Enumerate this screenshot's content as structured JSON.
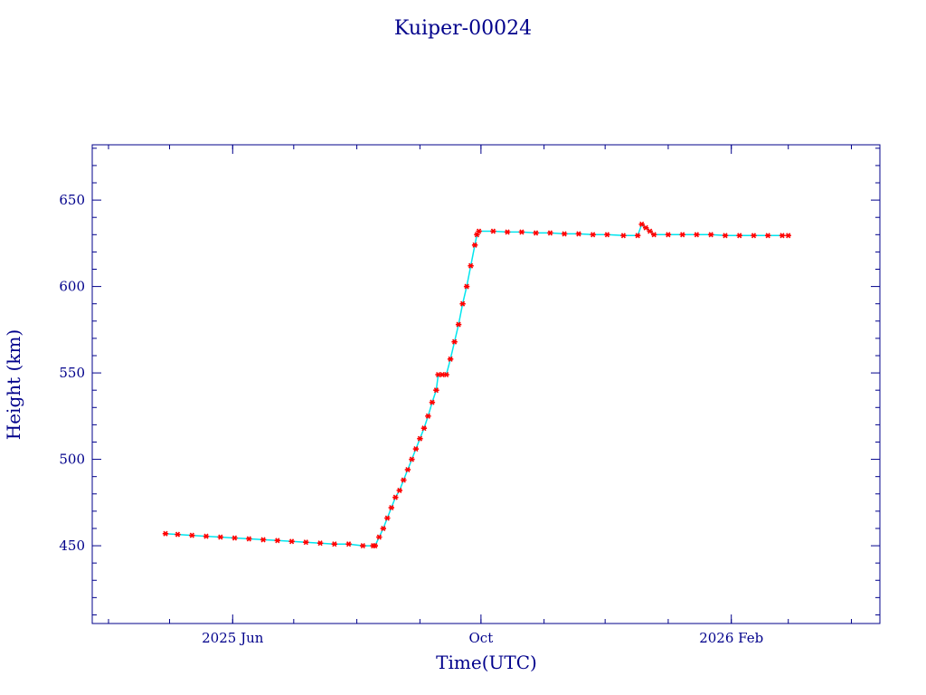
{
  "colors": {
    "axis": "#00008b",
    "text": "#00008b",
    "series": "#ff0000",
    "connector": "#00e5ee",
    "background": "#ffffff"
  },
  "chart_data": {
    "type": "scatter",
    "title": "Kuiper-00024",
    "xlabel": "Time(UTC)",
    "ylabel": "Height (km)",
    "xlim": [
      "2025-03-24",
      "2026-04-15"
    ],
    "ylim": [
      405,
      682
    ],
    "x_ticks": [
      {
        "date": "2025-06-01",
        "label": "2025 Jun"
      },
      {
        "date": "2025-10-01",
        "label": "Oct"
      },
      {
        "date": "2026-02-01",
        "label": "2026 Feb"
      }
    ],
    "y_ticks": [
      450,
      500,
      550,
      600,
      650
    ],
    "grid": false,
    "legend": "none",
    "marker": "asterisk",
    "series": [
      {
        "points": [
          [
            "2025-04-29",
            457
          ],
          [
            "2025-05-05",
            456.5
          ],
          [
            "2025-05-12",
            456
          ],
          [
            "2025-05-19",
            455.5
          ],
          [
            "2025-05-26",
            455
          ],
          [
            "2025-06-02",
            454.5
          ],
          [
            "2025-06-09",
            454
          ],
          [
            "2025-06-16",
            453.5
          ],
          [
            "2025-06-23",
            453
          ],
          [
            "2025-06-30",
            452.5
          ],
          [
            "2025-07-07",
            452
          ],
          [
            "2025-07-14",
            451.5
          ],
          [
            "2025-07-21",
            451
          ],
          [
            "2025-07-28",
            451
          ],
          [
            "2025-08-04",
            450
          ],
          [
            "2025-08-09",
            450
          ],
          [
            "2025-08-10",
            450
          ],
          [
            "2025-08-12",
            455
          ],
          [
            "2025-08-14",
            460
          ],
          [
            "2025-08-16",
            466
          ],
          [
            "2025-08-18",
            472
          ],
          [
            "2025-08-20",
            478
          ],
          [
            "2025-08-22",
            482
          ],
          [
            "2025-08-24",
            488
          ],
          [
            "2025-08-26",
            494
          ],
          [
            "2025-08-28",
            500
          ],
          [
            "2025-08-30",
            506
          ],
          [
            "2025-09-01",
            512
          ],
          [
            "2025-09-03",
            518
          ],
          [
            "2025-09-05",
            525
          ],
          [
            "2025-09-07",
            533
          ],
          [
            "2025-09-09",
            540
          ],
          [
            "2025-09-10",
            549
          ],
          [
            "2025-09-12",
            549
          ],
          [
            "2025-09-14",
            549
          ],
          [
            "2025-09-16",
            558
          ],
          [
            "2025-09-18",
            568
          ],
          [
            "2025-09-20",
            578
          ],
          [
            "2025-09-22",
            590
          ],
          [
            "2025-09-24",
            600
          ],
          [
            "2025-09-26",
            612
          ],
          [
            "2025-09-28",
            624
          ],
          [
            "2025-09-29",
            630
          ],
          [
            "2025-09-30",
            632
          ],
          [
            "2025-10-07",
            632
          ],
          [
            "2025-10-14",
            631.5
          ],
          [
            "2025-10-21",
            631.5
          ],
          [
            "2025-10-28",
            631
          ],
          [
            "2025-11-04",
            631
          ],
          [
            "2025-11-11",
            630.5
          ],
          [
            "2025-11-18",
            630.5
          ],
          [
            "2025-11-25",
            630
          ],
          [
            "2025-12-02",
            630
          ],
          [
            "2025-12-10",
            629.5
          ],
          [
            "2025-12-17",
            629.5
          ],
          [
            "2025-12-19",
            636
          ],
          [
            "2025-12-21",
            634
          ],
          [
            "2025-12-23",
            632
          ],
          [
            "2025-12-25",
            630
          ],
          [
            "2026-01-01",
            630
          ],
          [
            "2026-01-08",
            630
          ],
          [
            "2026-01-15",
            630
          ],
          [
            "2026-01-22",
            630
          ],
          [
            "2026-01-29",
            629.5
          ],
          [
            "2026-02-05",
            629.5
          ],
          [
            "2026-02-12",
            629.5
          ],
          [
            "2026-02-19",
            629.5
          ],
          [
            "2026-02-26",
            629.5
          ],
          [
            "2026-03-01",
            629.5
          ]
        ]
      }
    ]
  }
}
